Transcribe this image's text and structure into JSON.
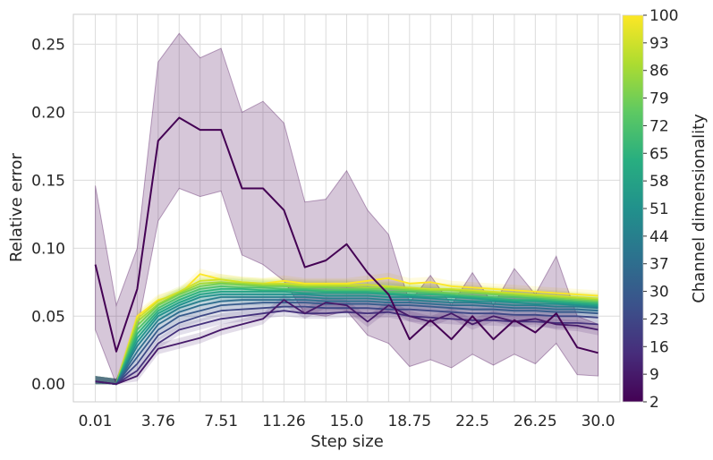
{
  "chart_data": {
    "type": "line",
    "xlabel": "Step size",
    "ylabel": "Relative error",
    "x_ticks": [
      "0.01",
      "3.76",
      "7.51",
      "11.26",
      "15.0",
      "18.75",
      "22.5",
      "26.25",
      "30.0"
    ],
    "y_ticks": [
      "0.00",
      "0.05",
      "0.10",
      "0.15",
      "0.20",
      "0.25"
    ],
    "x": [
      0.01,
      1.26,
      2.51,
      3.76,
      5.01,
      6.26,
      7.51,
      8.76,
      10.01,
      11.26,
      12.51,
      13.76,
      15.0,
      16.25,
      17.5,
      18.75,
      20.0,
      21.25,
      22.5,
      23.75,
      25.0,
      26.25,
      27.5,
      28.75,
      30.0
    ],
    "xlim": [
      -1.3,
      31.3
    ],
    "ylim": [
      -0.013,
      0.272
    ],
    "grid": true,
    "colorbar": {
      "label": "Channel dimensionality",
      "ticks": [
        "2",
        "9",
        "16",
        "23",
        "30",
        "37",
        "44",
        "51",
        "58",
        "65",
        "72",
        "79",
        "86",
        "93",
        "100"
      ],
      "range": [
        2,
        100
      ],
      "colormap": "viridis"
    },
    "series": [
      {
        "dim": 2,
        "values": [
          0.088,
          0.024,
          0.07,
          0.179,
          0.196,
          0.187,
          0.187,
          0.144,
          0.144,
          0.128,
          0.086,
          0.091,
          0.103,
          0.082,
          0.066,
          0.033,
          0.047,
          0.033,
          0.05,
          0.033,
          0.047,
          0.038,
          0.052,
          0.027,
          0.023
        ],
        "lower": [
          0.04,
          0.0,
          0.04,
          0.12,
          0.144,
          0.138,
          0.142,
          0.095,
          0.088,
          0.076,
          0.052,
          0.05,
          0.054,
          0.036,
          0.03,
          0.013,
          0.018,
          0.012,
          0.022,
          0.014,
          0.022,
          0.015,
          0.03,
          0.007,
          0.006
        ],
        "upper": [
          0.146,
          0.058,
          0.1,
          0.237,
          0.258,
          0.24,
          0.247,
          0.2,
          0.208,
          0.192,
          0.134,
          0.136,
          0.157,
          0.128,
          0.11,
          0.06,
          0.08,
          0.058,
          0.082,
          0.058,
          0.085,
          0.066,
          0.094,
          0.05,
          0.044
        ]
      },
      {
        "dim": 9,
        "values": [
          0.002,
          0.0,
          0.006,
          0.026,
          0.03,
          0.034,
          0.04,
          0.044,
          0.048,
          0.062,
          0.052,
          0.06,
          0.058,
          0.046,
          0.058,
          0.05,
          0.046,
          0.052,
          0.044,
          0.05,
          0.046,
          0.048,
          0.044,
          0.043,
          0.04
        ]
      },
      {
        "dim": 16,
        "values": [
          0.002,
          0.0,
          0.01,
          0.03,
          0.04,
          0.044,
          0.048,
          0.05,
          0.052,
          0.054,
          0.052,
          0.052,
          0.053,
          0.052,
          0.053,
          0.05,
          0.049,
          0.048,
          0.047,
          0.047,
          0.046,
          0.046,
          0.045,
          0.045,
          0.044
        ]
      },
      {
        "dim": 23,
        "values": [
          0.002,
          0.0,
          0.015,
          0.036,
          0.045,
          0.05,
          0.054,
          0.055,
          0.056,
          0.057,
          0.057,
          0.056,
          0.056,
          0.056,
          0.055,
          0.055,
          0.054,
          0.053,
          0.052,
          0.052,
          0.051,
          0.051,
          0.05,
          0.05,
          0.049
        ]
      },
      {
        "dim": 30,
        "values": [
          0.002,
          0.0,
          0.02,
          0.04,
          0.05,
          0.054,
          0.058,
          0.059,
          0.06,
          0.06,
          0.06,
          0.059,
          0.059,
          0.059,
          0.058,
          0.058,
          0.057,
          0.056,
          0.055,
          0.055,
          0.054,
          0.054,
          0.053,
          0.053,
          0.052
        ]
      },
      {
        "dim": 37,
        "values": [
          0.002,
          0.0,
          0.024,
          0.044,
          0.053,
          0.058,
          0.061,
          0.062,
          0.062,
          0.062,
          0.062,
          0.061,
          0.061,
          0.061,
          0.06,
          0.06,
          0.059,
          0.058,
          0.058,
          0.057,
          0.056,
          0.056,
          0.055,
          0.055,
          0.054
        ]
      },
      {
        "dim": 44,
        "values": [
          0.002,
          0.0,
          0.028,
          0.047,
          0.056,
          0.061,
          0.064,
          0.064,
          0.064,
          0.064,
          0.064,
          0.063,
          0.063,
          0.063,
          0.062,
          0.062,
          0.061,
          0.06,
          0.06,
          0.059,
          0.058,
          0.058,
          0.057,
          0.057,
          0.056
        ]
      },
      {
        "dim": 51,
        "values": [
          0.002,
          0.0,
          0.031,
          0.05,
          0.058,
          0.064,
          0.066,
          0.066,
          0.066,
          0.066,
          0.066,
          0.065,
          0.065,
          0.065,
          0.064,
          0.064,
          0.063,
          0.062,
          0.061,
          0.061,
          0.06,
          0.059,
          0.059,
          0.058,
          0.057
        ]
      },
      {
        "dim": 58,
        "values": [
          0.002,
          0.0,
          0.034,
          0.052,
          0.06,
          0.066,
          0.068,
          0.068,
          0.068,
          0.068,
          0.067,
          0.067,
          0.067,
          0.067,
          0.066,
          0.065,
          0.064,
          0.064,
          0.063,
          0.062,
          0.061,
          0.061,
          0.06,
          0.059,
          0.058
        ]
      },
      {
        "dim": 65,
        "values": [
          0.002,
          0.0,
          0.037,
          0.054,
          0.062,
          0.068,
          0.07,
          0.07,
          0.069,
          0.069,
          0.069,
          0.068,
          0.068,
          0.068,
          0.067,
          0.066,
          0.066,
          0.065,
          0.064,
          0.063,
          0.062,
          0.062,
          0.061,
          0.06,
          0.059
        ]
      },
      {
        "dim": 72,
        "values": [
          0.002,
          0.0,
          0.04,
          0.056,
          0.064,
          0.07,
          0.072,
          0.071,
          0.071,
          0.07,
          0.07,
          0.069,
          0.069,
          0.069,
          0.068,
          0.068,
          0.067,
          0.066,
          0.065,
          0.064,
          0.064,
          0.063,
          0.062,
          0.061,
          0.06
        ]
      },
      {
        "dim": 79,
        "values": [
          0.002,
          0.0,
          0.043,
          0.058,
          0.066,
          0.072,
          0.074,
          0.073,
          0.072,
          0.072,
          0.071,
          0.071,
          0.07,
          0.07,
          0.07,
          0.069,
          0.068,
          0.067,
          0.067,
          0.066,
          0.065,
          0.064,
          0.063,
          0.062,
          0.061
        ]
      },
      {
        "dim": 86,
        "values": [
          0.002,
          0.0,
          0.046,
          0.059,
          0.067,
          0.074,
          0.075,
          0.074,
          0.073,
          0.073,
          0.072,
          0.072,
          0.072,
          0.071,
          0.071,
          0.07,
          0.069,
          0.069,
          0.068,
          0.067,
          0.066,
          0.065,
          0.064,
          0.063,
          0.062
        ]
      },
      {
        "dim": 93,
        "values": [
          0.002,
          0.0,
          0.048,
          0.061,
          0.068,
          0.076,
          0.077,
          0.075,
          0.074,
          0.074,
          0.073,
          0.073,
          0.073,
          0.073,
          0.072,
          0.071,
          0.07,
          0.07,
          0.069,
          0.068,
          0.067,
          0.066,
          0.065,
          0.064,
          0.063
        ]
      },
      {
        "dim": 100,
        "values": [
          0.002,
          0.0,
          0.05,
          0.062,
          0.066,
          0.081,
          0.077,
          0.075,
          0.074,
          0.076,
          0.074,
          0.074,
          0.074,
          0.076,
          0.078,
          0.074,
          0.075,
          0.072,
          0.071,
          0.07,
          0.069,
          0.068,
          0.067,
          0.066,
          0.065
        ]
      }
    ]
  }
}
